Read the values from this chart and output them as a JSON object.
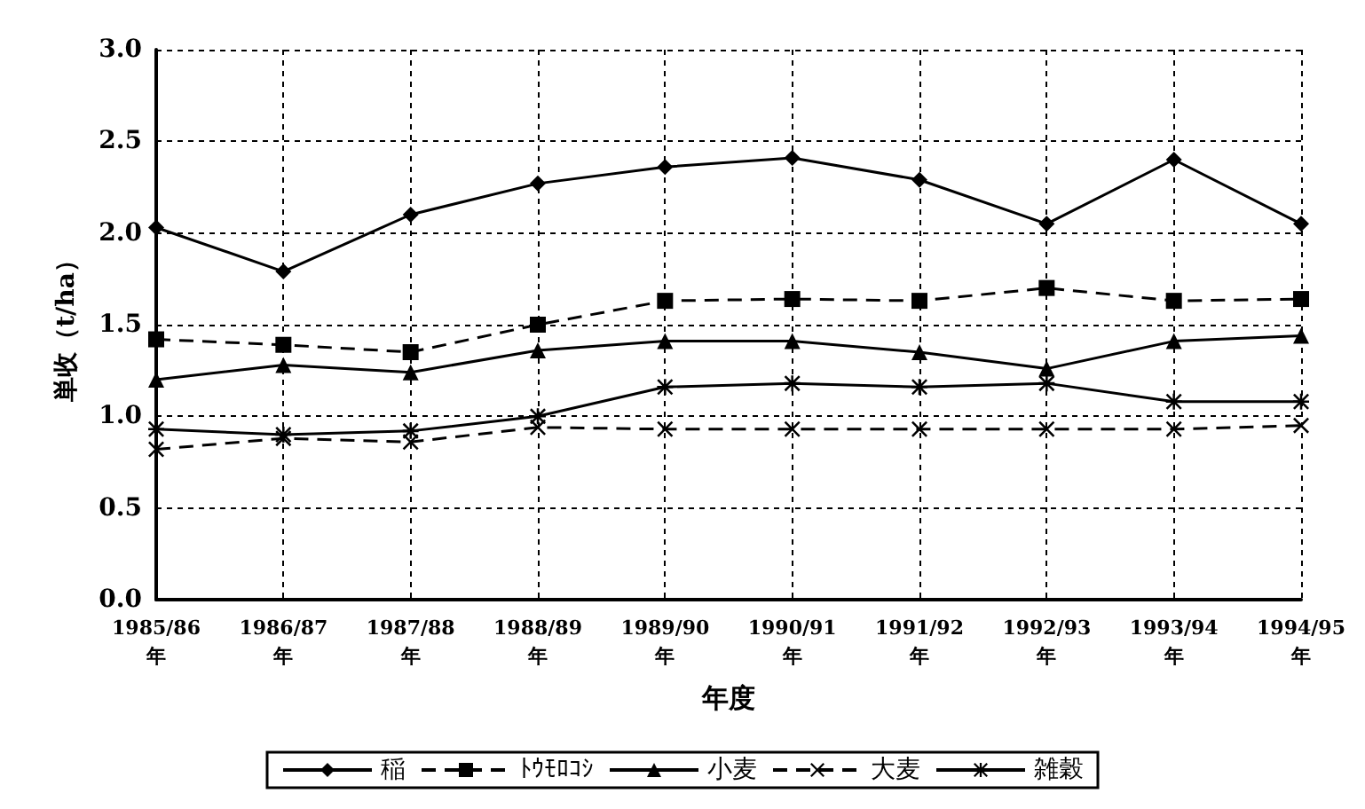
{
  "chart_data": {
    "type": "line",
    "xlabel": "年度",
    "ylabel": "単收（t/ha）",
    "categories": [
      "1985/86\n年",
      "1986/87\n年",
      "1987/88\n年",
      "1988/89\n年",
      "1989/90\n年",
      "1990/91\n年",
      "1991/92\n年",
      "1992/93\n年",
      "1993/94\n年",
      "1994/95\n年"
    ],
    "series": [
      {
        "name": "稲",
        "color": "#000000",
        "marker": "diamond",
        "line_style": "solid",
        "values": [
          2.03,
          1.79,
          2.1,
          2.27,
          2.36,
          2.41,
          2.29,
          2.05,
          2.4,
          2.05
        ]
      },
      {
        "name": "ﾄｳﾓﾛｺｼ",
        "color": "#000000",
        "marker": "square",
        "line_style": "dashed",
        "values": [
          1.42,
          1.39,
          1.35,
          1.5,
          1.63,
          1.64,
          1.63,
          1.7,
          1.63,
          1.64
        ]
      },
      {
        "name": "小麦",
        "color": "#000000",
        "marker": "triangle",
        "line_style": "solid",
        "values": [
          1.2,
          1.28,
          1.24,
          1.36,
          1.41,
          1.41,
          1.35,
          1.26,
          1.41,
          1.44
        ]
      },
      {
        "name": "大麦",
        "color": "#000000",
        "marker": "cross",
        "line_style": "dashed",
        "values": [
          0.82,
          0.88,
          0.86,
          0.94,
          0.93,
          0.93,
          0.93,
          0.93,
          0.93,
          0.95
        ]
      },
      {
        "name": "雑穀",
        "color": "#000000",
        "marker": "star",
        "line_style": "solid",
        "values": [
          0.93,
          0.9,
          0.92,
          1.0,
          1.16,
          1.18,
          1.16,
          1.18,
          1.08,
          1.08
        ]
      }
    ],
    "ylim": [
      0,
      3
    ],
    "yticks": [
      {
        "value": 0,
        "label": "0.0"
      },
      0.5,
      {
        "value": 1,
        "label": "1.0"
      },
      1.5,
      {
        "value": 2,
        "label": "2.0"
      },
      2.5,
      {
        "value": 3,
        "label": "3.0"
      }
    ],
    "grid": true,
    "legend": "bottom"
  }
}
